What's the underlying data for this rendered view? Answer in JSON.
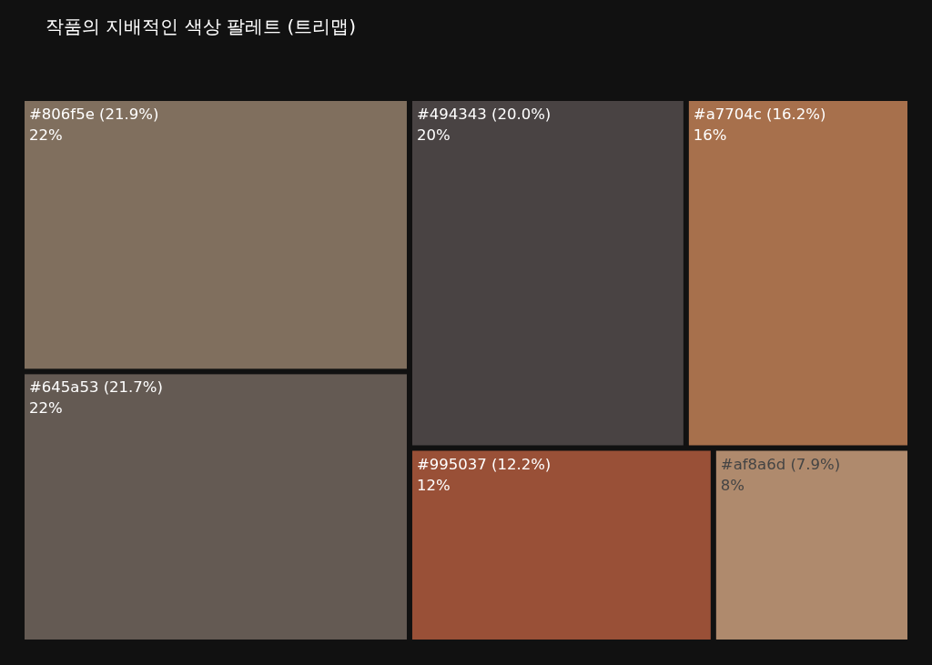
{
  "chart_data": {
    "type": "other",
    "title": "작품의 지배적인 색상 팔레트 (트리맵)",
    "categories": [
      "#806f5e (21.9%)",
      "#645a53 (21.7%)",
      "#494343 (20.0%)",
      "#a7704c (16.2%)",
      "#995037 (12.2%)",
      "#af8a6d (7.9%)"
    ],
    "values": [
      21.9,
      21.7,
      20.0,
      16.2,
      12.2,
      7.9
    ],
    "value_labels": [
      "22%",
      "22%",
      "20%",
      "16%",
      "12%",
      "8%"
    ],
    "colors": [
      "#806f5e",
      "#645a53",
      "#494343",
      "#a7704c",
      "#995037",
      "#af8a6d"
    ]
  }
}
